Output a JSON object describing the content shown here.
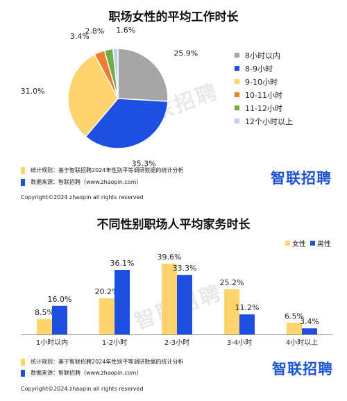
{
  "colors": {
    "gray": "#a6a6a6",
    "blue": "#1f4fe0",
    "yellow": "#ffd36e",
    "orange": "#ed7d31",
    "green": "#70ad47",
    "lightblue": "#bdd1ea",
    "brand": "#1f56d4"
  },
  "panel1": {
    "note_rule": "统计规则：基于智联招聘2024年性别平等调研数据的统计分析",
    "note_source": "数据来源：智联招聘（www.zhaopin.com）",
    "copyright": "Copyright©2024 zhaopin all rights reserved",
    "logo": "智联招聘",
    "watermark": "智联招聘"
  },
  "panel2": {
    "note_rule": "统计规则：基于智联招聘2024年性别平等调研数据的统计分析",
    "note_source": "数据来源：智联招聘（www.zhaopin.com）",
    "copyright": "Copyright©2024 zhaopin all rights reserved",
    "logo": "智联招聘",
    "watermark": "智联招聘"
  },
  "chart_data": [
    {
      "type": "pie",
      "title": "职场女性的平均工作时长",
      "legend_position": "right",
      "slices": [
        {
          "label": "8小时以内",
          "value": 25.9,
          "display": "25.9%",
          "color": "#a6a6a6"
        },
        {
          "label": "8-9小时",
          "value": 35.3,
          "display": "35.3%",
          "color": "#1f4fe0"
        },
        {
          "label": "9-10小时",
          "value": 31.0,
          "display": "31.0%",
          "color": "#ffd36e"
        },
        {
          "label": "10-11小时",
          "value": 3.4,
          "display": "3.4%",
          "color": "#ed7d31"
        },
        {
          "label": "11-12小时",
          "value": 2.8,
          "display": "2.8%",
          "color": "#70ad47"
        },
        {
          "label": "12个小时以上",
          "value": 1.6,
          "display": "1.6%",
          "color": "#bdd1ea"
        }
      ]
    },
    {
      "type": "bar",
      "title": "不同性别职场人平均家务时长",
      "legend_position": "top-right",
      "categories": [
        "1小时以内",
        "1-2小时",
        "2-3小时",
        "3-4小时",
        "4小时以上"
      ],
      "series": [
        {
          "name": "女性",
          "color": "#ffd36e",
          "values": [
            8.5,
            20.2,
            39.6,
            25.2,
            6.5
          ],
          "labels": [
            "8.5%",
            "20.2%",
            "39.6%",
            "25.2%",
            "6.5%"
          ]
        },
        {
          "name": "男性",
          "color": "#1f4fe0",
          "values": [
            16.0,
            36.1,
            33.3,
            11.2,
            3.4
          ],
          "labels": [
            "16.0%",
            "36.1%",
            "33.3%",
            "11.2%",
            "3.4%"
          ]
        }
      ],
      "ylim": [
        0,
        45
      ],
      "grid": false
    }
  ]
}
